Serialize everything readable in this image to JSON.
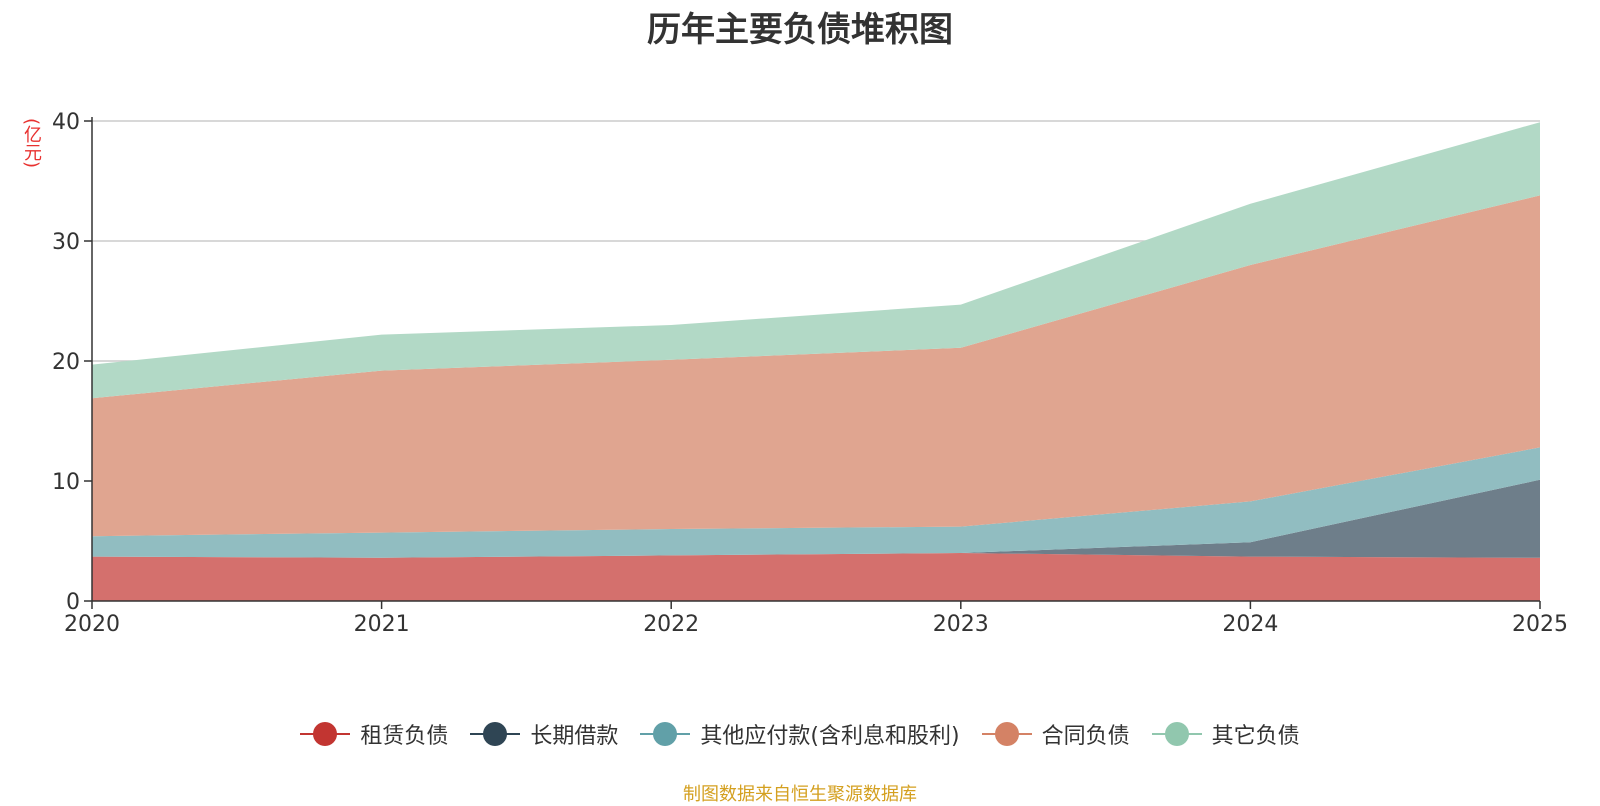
{
  "chart_data": {
    "type": "area",
    "title": "历年主要负债堆积图",
    "ylabel": "(亿元)",
    "stacked": true,
    "x": [
      "2020",
      "2021",
      "2022",
      "2023",
      "2024",
      "2025"
    ],
    "ylim": [
      0,
      40
    ],
    "yticks": [
      0,
      10,
      20,
      30,
      40
    ],
    "grid": true,
    "legend_position": "bottom",
    "series": [
      {
        "name": "租赁负债",
        "color": "#c23531",
        "fill": "#d4706d",
        "values": [
          3.7,
          3.6,
          3.8,
          4.0,
          3.7,
          3.6
        ]
      },
      {
        "name": "长期借款",
        "color": "#2f4554",
        "fill": "#6e7e8a",
        "values": [
          0,
          0,
          0,
          0,
          1.2,
          6.5
        ]
      },
      {
        "name": "其他应付款(含利息和股利)",
        "color": "#61a0a8",
        "fill": "#91bdc1",
        "values": [
          1.7,
          2.1,
          2.2,
          2.2,
          3.4,
          2.7
        ]
      },
      {
        "name": "合同负债",
        "color": "#d48265",
        "fill": "#e0a590",
        "values": [
          11.5,
          13.5,
          14.1,
          14.9,
          19.7,
          21.0
        ]
      },
      {
        "name": "其它负债",
        "color": "#91c7ae",
        "fill": "#b2d9c6",
        "values": [
          2.8,
          3.0,
          2.9,
          3.6,
          5.1,
          6.1
        ]
      }
    ]
  },
  "source_note": "制图数据来自恒生聚源数据库"
}
